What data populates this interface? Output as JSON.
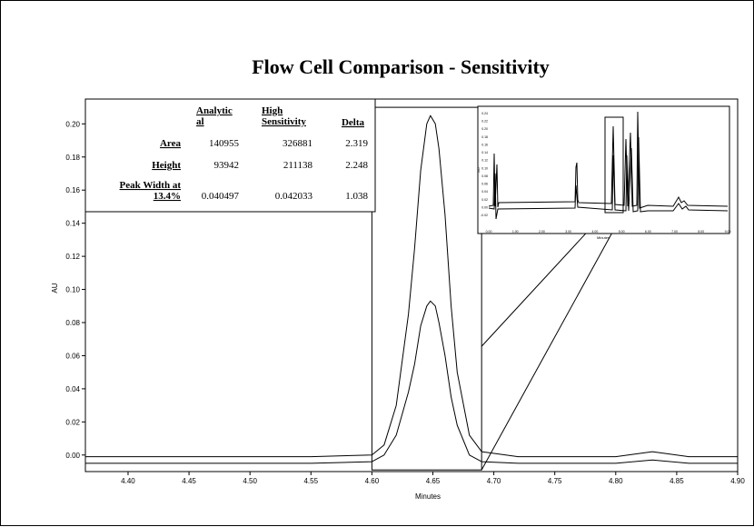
{
  "chart_data": {
    "type": "line",
    "title": "Flow Cell Comparison - Sensitivity",
    "xlabel": "Minutes",
    "ylabel": "AU",
    "xlim": [
      4.365,
      4.9
    ],
    "ylim": [
      -0.01,
      0.215
    ],
    "x_ticks": [
      "4.40",
      "4.45",
      "4.50",
      "4.55",
      "4.60",
      "4.65",
      "4.70",
      "4.75",
      "4.80",
      "4.85",
      "4.90"
    ],
    "y_ticks": [
      "0.00",
      "0.02",
      "0.04",
      "0.06",
      "0.08",
      "0.10",
      "0.12",
      "0.14",
      "0.16",
      "0.18",
      "0.20"
    ],
    "series": [
      {
        "x": [
          4.365,
          4.55,
          4.6,
          4.61,
          4.62,
          4.63,
          4.635,
          4.64,
          4.645,
          4.648,
          4.652,
          4.655,
          4.66,
          4.665,
          4.67,
          4.68,
          4.69,
          4.72,
          4.8,
          4.83,
          4.86,
          4.9
        ],
        "y": [
          -0.001,
          -0.001,
          0.0,
          0.006,
          0.03,
          0.085,
          0.125,
          0.172,
          0.2,
          0.205,
          0.2,
          0.185,
          0.145,
          0.09,
          0.05,
          0.012,
          0.002,
          -0.001,
          -0.001,
          0.002,
          -0.001,
          -0.001
        ]
      },
      {
        "x": [
          4.365,
          4.55,
          4.6,
          4.61,
          4.62,
          4.63,
          4.635,
          4.64,
          4.645,
          4.648,
          4.652,
          4.655,
          4.66,
          4.665,
          4.67,
          4.68,
          4.69,
          4.72,
          4.8,
          4.83,
          4.86,
          4.9
        ],
        "y": [
          -0.005,
          -0.005,
          -0.004,
          0.0,
          0.012,
          0.038,
          0.055,
          0.078,
          0.09,
          0.093,
          0.09,
          0.08,
          0.06,
          0.035,
          0.018,
          0.0,
          -0.004,
          -0.005,
          -0.005,
          -0.003,
          -0.005,
          -0.005
        ]
      }
    ],
    "zoom_box": {
      "x": [
        4.6,
        4.69
      ],
      "y": [
        -0.009,
        0.21
      ]
    },
    "inset": {
      "y_ticks": [
        "0.24",
        "0.22",
        "0.20",
        "0.18",
        "0.16",
        "0.14",
        "0.12",
        "0.10",
        "0.08",
        "0.06",
        "0.04",
        "0.02",
        "0.00",
        "-0.02"
      ],
      "x_ticks": [
        "0.00",
        "1.00",
        "2.00",
        "3.00",
        "4.00",
        "5.00",
        "6.00",
        "7.00",
        "8.00",
        "9.00"
      ],
      "ylabel": "AU",
      "xlabel": "Minutes"
    }
  },
  "table": {
    "headers": [
      "Analytical",
      "High Sensitivity",
      "Delta"
    ],
    "header_lines": [
      [
        "Analytic",
        "al"
      ],
      [
        "High",
        "Sensitivity"
      ],
      [
        "Delta"
      ]
    ],
    "rows": [
      {
        "label": [
          "Area"
        ],
        "values": [
          "140955",
          "326881",
          "2.319"
        ]
      },
      {
        "label": [
          "Height"
        ],
        "values": [
          "93942",
          "211138",
          "2.248"
        ]
      },
      {
        "label": [
          "Peak Width at",
          "13.4%"
        ],
        "values": [
          "0.040497",
          "0.042033",
          "1.038"
        ]
      }
    ]
  }
}
